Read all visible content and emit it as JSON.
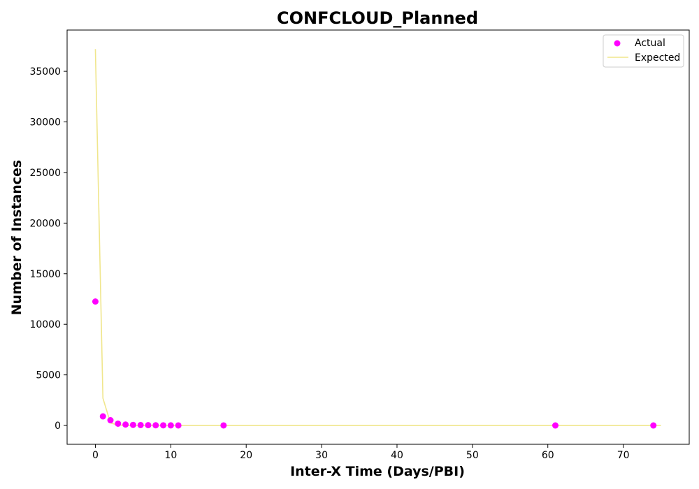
{
  "chart_data": {
    "type": "scatter",
    "title": "CONFCLOUD_Planned",
    "xlabel": "Inter-X Time (Days/PBI)",
    "ylabel": "Number of Instances",
    "xlim": [
      -3.75,
      78.75
    ],
    "ylim": [
      -1860,
      39080
    ],
    "xticks": [
      0,
      10,
      20,
      30,
      40,
      50,
      60,
      70
    ],
    "yticks": [
      0,
      5000,
      10000,
      15000,
      20000,
      25000,
      30000,
      35000
    ],
    "grid": false,
    "legend_position": "top-right",
    "series": [
      {
        "name": "Actual",
        "kind": "scatter",
        "color": "#ff00ff",
        "x": [
          0,
          1,
          2,
          3,
          4,
          5,
          6,
          7,
          8,
          9,
          10,
          11,
          17,
          61,
          74
        ],
        "y": [
          12250,
          900,
          520,
          180,
          90,
          60,
          40,
          30,
          20,
          15,
          10,
          8,
          5,
          2,
          2
        ]
      },
      {
        "name": "Expected",
        "kind": "line",
        "color": "#f0e68c",
        "x": [
          0,
          1,
          2,
          3,
          4,
          5,
          6,
          7,
          8,
          9,
          10,
          11,
          12,
          13,
          14,
          15,
          16,
          17,
          18,
          19,
          20,
          30,
          40,
          50,
          60,
          70,
          75
        ],
        "y": [
          37200,
          2700,
          250,
          40,
          10,
          3,
          1,
          0,
          0,
          0,
          0,
          0,
          0,
          0,
          0,
          0,
          0,
          0,
          0,
          0,
          0,
          0,
          0,
          0,
          0,
          0,
          0
        ]
      }
    ]
  }
}
